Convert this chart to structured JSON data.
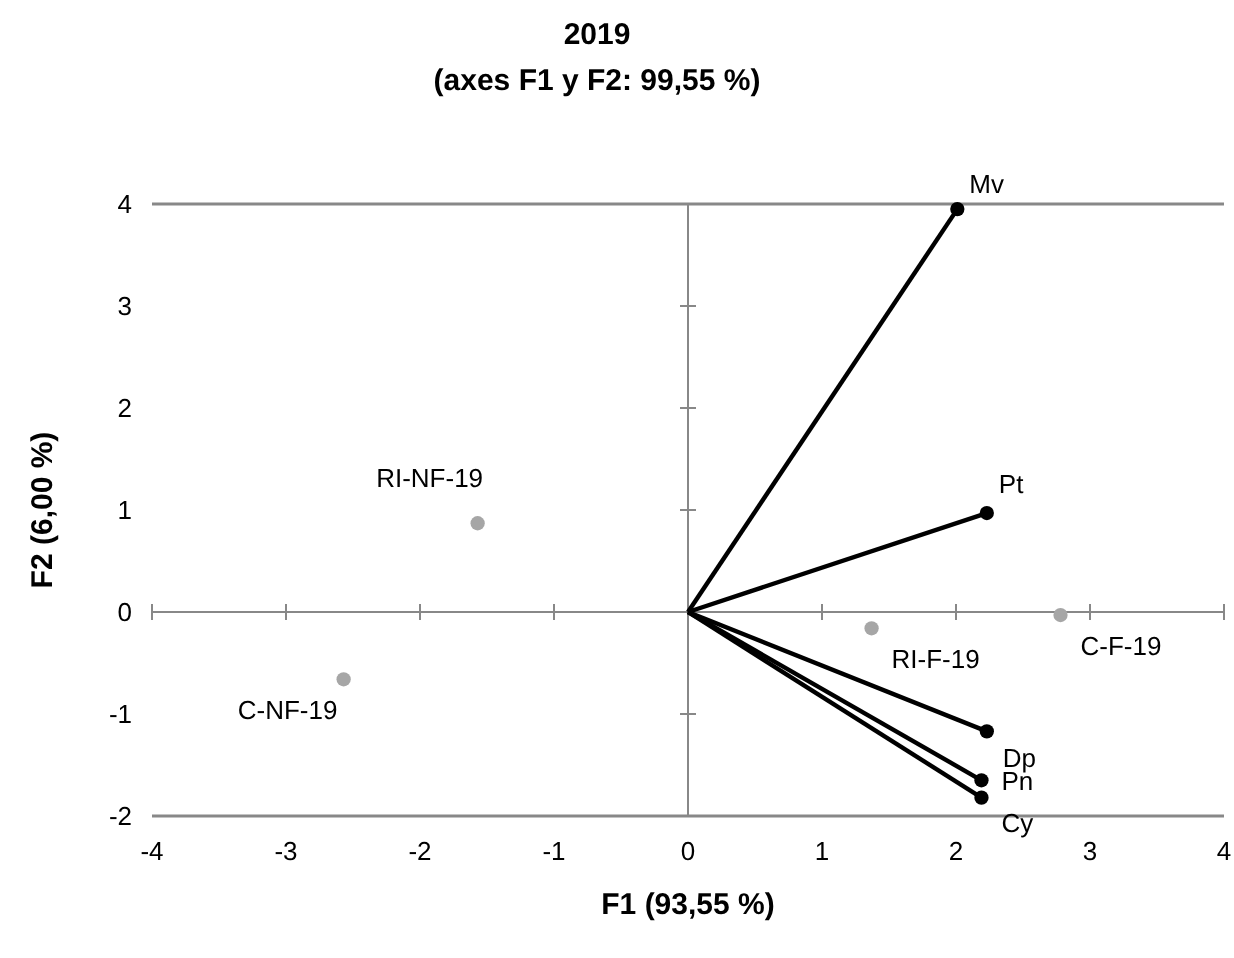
{
  "chart_data": {
    "type": "scatter",
    "title": "2019",
    "subtitle": "(axes F1 y F2: 99,55 %)",
    "xlabel": "F1 (93,55 %)",
    "ylabel": "F2 (6,00 %)",
    "xlim": [
      -4,
      4
    ],
    "ylim": [
      -2,
      4
    ],
    "xticks": [
      -4,
      -3,
      -2,
      -1,
      0,
      1,
      2,
      3,
      4
    ],
    "yticks": [
      -2,
      -1,
      0,
      1,
      2,
      3,
      4
    ],
    "marker": "circle",
    "series": [
      {
        "type": "line",
        "color": "#000000",
        "x": [
          0,
          2.01
        ],
        "values": [
          0,
          3.95
        ],
        "marker": "none"
      },
      {
        "type": "line",
        "color": "#000000",
        "x": [
          0,
          2.23
        ],
        "values": [
          0,
          0.97
        ],
        "marker": "none"
      },
      {
        "type": "line",
        "color": "#000000",
        "x": [
          0,
          2.23
        ],
        "values": [
          0,
          -1.17
        ],
        "marker": "none"
      },
      {
        "type": "line",
        "color": "#000000",
        "x": [
          0,
          2.19
        ],
        "values": [
          0,
          -1.65
        ],
        "marker": "none"
      },
      {
        "type": "line",
        "color": "#000000",
        "x": [
          0,
          2.19
        ],
        "values": [
          0,
          -1.82
        ],
        "marker": "none"
      },
      {
        "color": "#000000",
        "x": [
          2.01,
          2.23,
          2.23,
          2.19,
          2.19
        ],
        "values": [
          3.95,
          0.97,
          -1.17,
          -1.65,
          -1.82
        ]
      },
      {
        "color": "#a6a6a6",
        "x": [
          -1.57,
          -2.57,
          1.37,
          2.78
        ],
        "values": [
          0.87,
          -0.66,
          -0.16,
          -0.03
        ]
      }
    ],
    "annotations": [
      {
        "text": "Mv",
        "x": 2.01,
        "y": 3.95
      },
      {
        "text": "Pt",
        "x": 2.23,
        "y": 0.97
      },
      {
        "text": "Dp",
        "x": 2.23,
        "y": -1.17
      },
      {
        "text": "Pn",
        "x": 2.19,
        "y": -1.65
      },
      {
        "text": "Cy",
        "x": 2.19,
        "y": -1.82
      },
      {
        "text": "RI-NF-19",
        "x": -1.57,
        "y": 0.87
      },
      {
        "text": "C-NF-19",
        "x": -2.57,
        "y": -0.66
      },
      {
        "text": "RI-F-19",
        "x": 1.37,
        "y": -0.16
      },
      {
        "text": "C-F-19",
        "x": 2.78,
        "y": -0.03
      }
    ]
  }
}
